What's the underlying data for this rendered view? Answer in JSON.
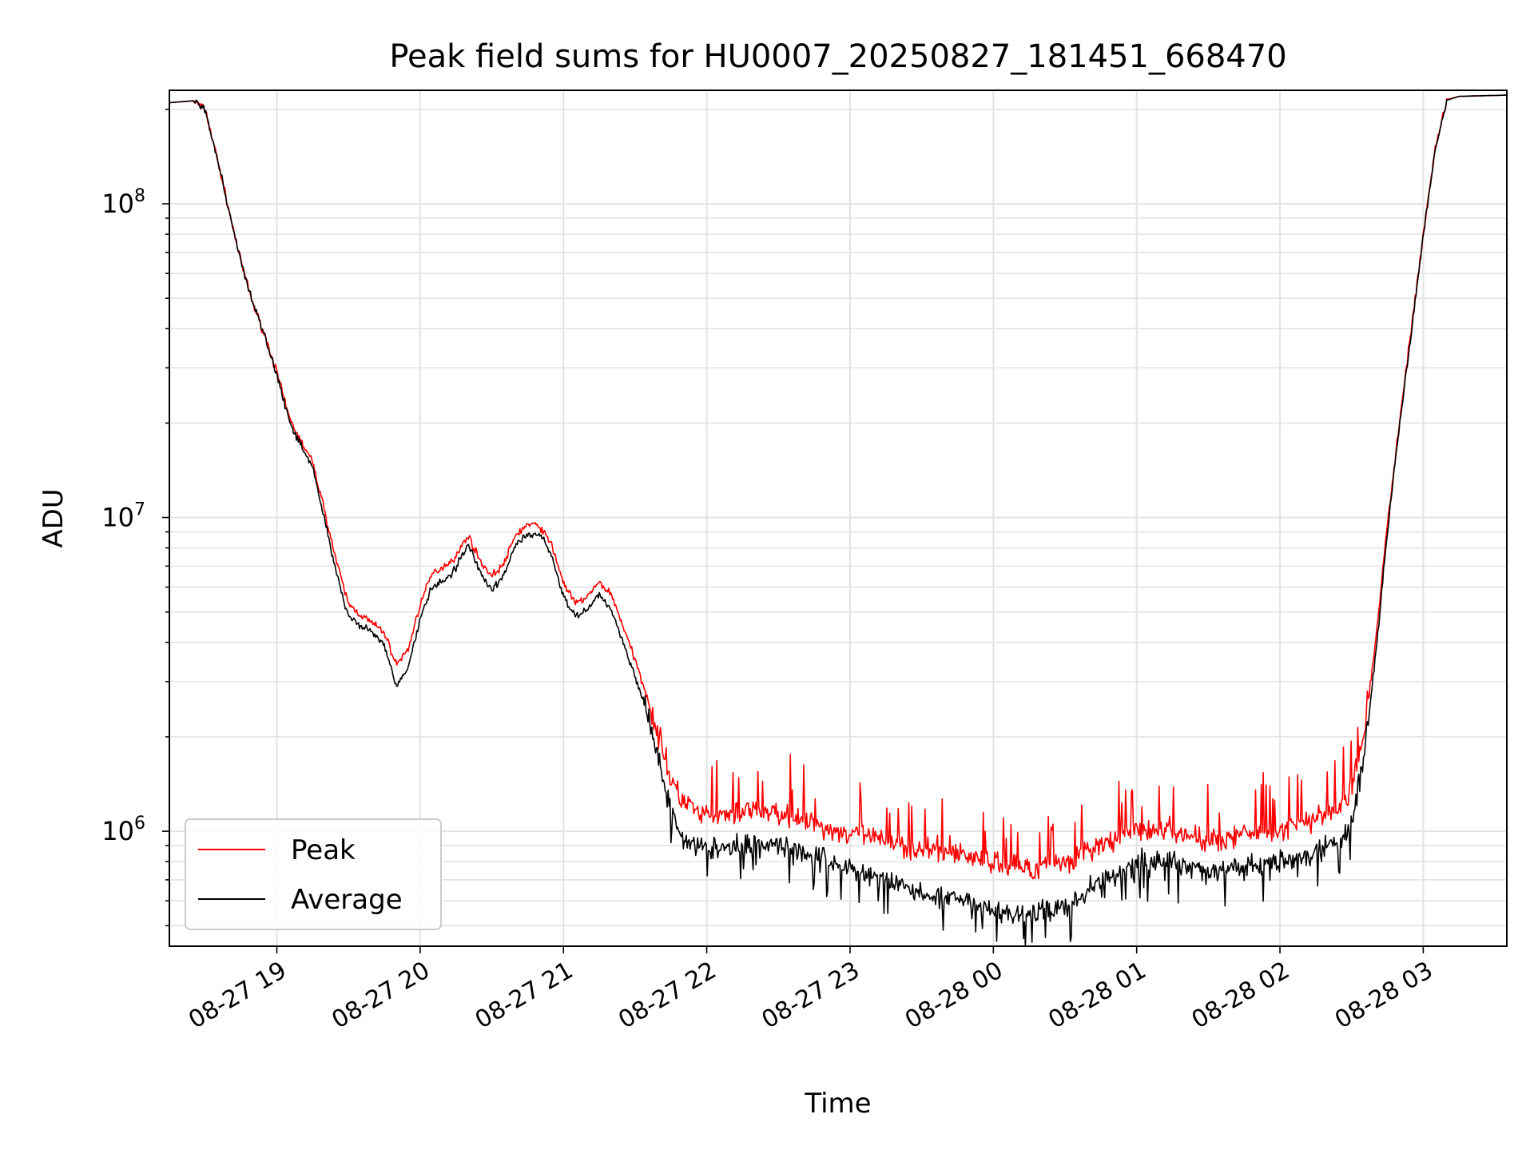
{
  "chart_data": {
    "type": "line",
    "title": "Peak field sums for HU0007_20250827_181451_668470",
    "xlabel": "Time",
    "ylabel": "ADU",
    "y_scale": "log",
    "xlim": [
      "2025-08-27 18:15",
      "2025-08-28 03:35"
    ],
    "ylim": [
      430000,
      230000000
    ],
    "grid": true,
    "legend_position": "lower-left",
    "x_ticks": [
      {
        "time": "2025-08-27 19:00",
        "label": "08-27 19"
      },
      {
        "time": "2025-08-27 20:00",
        "label": "08-27 20"
      },
      {
        "time": "2025-08-27 21:00",
        "label": "08-27 21"
      },
      {
        "time": "2025-08-27 22:00",
        "label": "08-27 22"
      },
      {
        "time": "2025-08-27 23:00",
        "label": "08-27 23"
      },
      {
        "time": "2025-08-28 00:00",
        "label": "08-28 00"
      },
      {
        "time": "2025-08-28 01:00",
        "label": "08-28 01"
      },
      {
        "time": "2025-08-28 02:00",
        "label": "08-28 02"
      },
      {
        "time": "2025-08-28 03:00",
        "label": "08-28 03"
      }
    ],
    "y_ticks": [
      {
        "value": 1000000,
        "base": "10",
        "exp": "6"
      },
      {
        "value": 10000000,
        "base": "10",
        "exp": "7"
      },
      {
        "value": 100000000,
        "base": "10",
        "exp": "8"
      }
    ],
    "series": [
      {
        "name": "Peak",
        "color": "#ff0000",
        "x": [
          "2025-08-27 18:15",
          "2025-08-27 18:25",
          "2025-08-27 18:30",
          "2025-08-27 18:35",
          "2025-08-27 18:40",
          "2025-08-27 18:45",
          "2025-08-27 18:50",
          "2025-08-27 18:55",
          "2025-08-27 19:00",
          "2025-08-27 19:05",
          "2025-08-27 19:10",
          "2025-08-27 19:15",
          "2025-08-27 19:20",
          "2025-08-27 19:25",
          "2025-08-27 19:30",
          "2025-08-27 19:35",
          "2025-08-27 19:40",
          "2025-08-27 19:45",
          "2025-08-27 19:50",
          "2025-08-27 19:55",
          "2025-08-27 20:00",
          "2025-08-27 20:05",
          "2025-08-27 20:10",
          "2025-08-27 20:15",
          "2025-08-27 20:20",
          "2025-08-27 20:25",
          "2025-08-27 20:30",
          "2025-08-27 20:35",
          "2025-08-27 20:40",
          "2025-08-27 20:45",
          "2025-08-27 20:50",
          "2025-08-27 20:55",
          "2025-08-27 21:00",
          "2025-08-27 21:05",
          "2025-08-27 21:10",
          "2025-08-27 21:15",
          "2025-08-27 21:20",
          "2025-08-27 21:25",
          "2025-08-27 21:30",
          "2025-08-27 21:35",
          "2025-08-27 21:40",
          "2025-08-27 21:45",
          "2025-08-27 21:50",
          "2025-08-27 22:00",
          "2025-08-27 22:15",
          "2025-08-27 22:30",
          "2025-08-27 22:45",
          "2025-08-27 23:00",
          "2025-08-27 23:15",
          "2025-08-27 23:30",
          "2025-08-27 23:45",
          "2025-08-28 00:00",
          "2025-08-28 00:15",
          "2025-08-28 00:30",
          "2025-08-28 00:45",
          "2025-08-28 01:00",
          "2025-08-28 01:15",
          "2025-08-28 01:30",
          "2025-08-28 01:45",
          "2025-08-28 02:00",
          "2025-08-28 02:15",
          "2025-08-28 02:25",
          "2025-08-28 02:30",
          "2025-08-28 02:35",
          "2025-08-28 02:40",
          "2025-08-28 02:45",
          "2025-08-28 02:50",
          "2025-08-28 02:55",
          "2025-08-28 03:00",
          "2025-08-28 03:05",
          "2025-08-28 03:10",
          "2025-08-28 03:15",
          "2025-08-28 03:35"
        ],
        "values": [
          210000000,
          213000000,
          200000000,
          140000000,
          95000000,
          65000000,
          48000000,
          38000000,
          29000000,
          21000000,
          17500000,
          15000000,
          10500000,
          7200000,
          5300000,
          4900000,
          4600000,
          4300000,
          3400000,
          3800000,
          5300000,
          6600000,
          7000000,
          7500000,
          8800000,
          7300000,
          6500000,
          7100000,
          8800000,
          9500000,
          9400000,
          8200000,
          6200000,
          5300000,
          5600000,
          6200000,
          5700000,
          4500000,
          3500000,
          2700000,
          2000000,
          1450000,
          1250000,
          1100000,
          1150000,
          1150000,
          1050000,
          980000,
          930000,
          870000,
          860000,
          790000,
          760000,
          800000,
          900000,
          1000000,
          1000000,
          930000,
          980000,
          1000000,
          1100000,
          1200000,
          1350000,
          2000000,
          4000000,
          9500000,
          20000000,
          40000000,
          80000000,
          150000000,
          215000000,
          220000000,
          222000000
        ]
      },
      {
        "name": "Average",
        "color": "#000000",
        "x": [
          "2025-08-27 18:15",
          "2025-08-27 18:25",
          "2025-08-27 18:30",
          "2025-08-27 18:35",
          "2025-08-27 18:40",
          "2025-08-27 18:45",
          "2025-08-27 18:50",
          "2025-08-27 18:55",
          "2025-08-27 19:00",
          "2025-08-27 19:05",
          "2025-08-27 19:10",
          "2025-08-27 19:15",
          "2025-08-27 19:20",
          "2025-08-27 19:25",
          "2025-08-27 19:30",
          "2025-08-27 19:35",
          "2025-08-27 19:40",
          "2025-08-27 19:45",
          "2025-08-27 19:50",
          "2025-08-27 19:55",
          "2025-08-27 20:00",
          "2025-08-27 20:05",
          "2025-08-27 20:10",
          "2025-08-27 20:15",
          "2025-08-27 20:20",
          "2025-08-27 20:25",
          "2025-08-27 20:30",
          "2025-08-27 20:35",
          "2025-08-27 20:40",
          "2025-08-27 20:45",
          "2025-08-27 20:50",
          "2025-08-27 20:55",
          "2025-08-27 21:00",
          "2025-08-27 21:05",
          "2025-08-27 21:10",
          "2025-08-27 21:15",
          "2025-08-27 21:20",
          "2025-08-27 21:25",
          "2025-08-27 21:30",
          "2025-08-27 21:35",
          "2025-08-27 21:40",
          "2025-08-27 21:45",
          "2025-08-27 21:50",
          "2025-08-27 22:00",
          "2025-08-27 22:15",
          "2025-08-27 22:30",
          "2025-08-27 22:45",
          "2025-08-27 23:00",
          "2025-08-27 23:15",
          "2025-08-27 23:30",
          "2025-08-27 23:45",
          "2025-08-28 00:00",
          "2025-08-28 00:15",
          "2025-08-28 00:30",
          "2025-08-28 00:45",
          "2025-08-28 01:00",
          "2025-08-28 01:15",
          "2025-08-28 01:30",
          "2025-08-28 01:45",
          "2025-08-28 02:00",
          "2025-08-28 02:15",
          "2025-08-28 02:25",
          "2025-08-28 02:30",
          "2025-08-28 02:35",
          "2025-08-28 02:40",
          "2025-08-28 02:45",
          "2025-08-28 02:50",
          "2025-08-28 02:55",
          "2025-08-28 03:00",
          "2025-08-28 03:05",
          "2025-08-28 03:10",
          "2025-08-28 03:15",
          "2025-08-28 03:35"
        ],
        "values": [
          210000000,
          213000000,
          200000000,
          140000000,
          95000000,
          65000000,
          48000000,
          38000000,
          28500000,
          20500000,
          17000000,
          14500000,
          9800000,
          6600000,
          4800000,
          4500000,
          4300000,
          3900000,
          2900000,
          3300000,
          4800000,
          6000000,
          6300000,
          6900000,
          8300000,
          6700000,
          5900000,
          6500000,
          8200000,
          8800000,
          8900000,
          7600000,
          5600000,
          4800000,
          5100000,
          5700000,
          5100000,
          4000000,
          3100000,
          2400000,
          1700000,
          1150000,
          960000,
          870000,
          900000,
          920000,
          830000,
          760000,
          700000,
          630000,
          600000,
          560000,
          540000,
          580000,
          690000,
          800000,
          800000,
          740000,
          770000,
          800000,
          860000,
          920000,
          1050000,
          1700000,
          3600000,
          9000000,
          19500000,
          39000000,
          79000000,
          149000000,
          214000000,
          220000000,
          222000000
        ]
      }
    ]
  }
}
